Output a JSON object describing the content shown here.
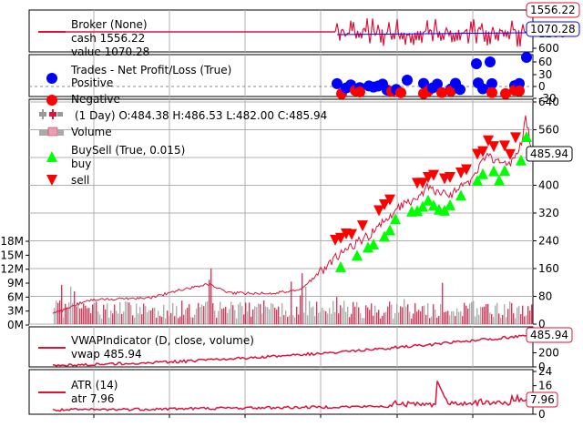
{
  "chart_data": {
    "type": "line",
    "x_range": [
      0,
      1
    ],
    "panels": {
      "broker": {
        "legend": {
          "title": "Broker (None)",
          "cash_label": "cash 1556.22",
          "value_label": "value 1070.28"
        },
        "y_ticks": [
          "1200",
          "600"
        ],
        "cash_tag": "1556.22",
        "value_tag": "1070.28",
        "colors": {
          "cash": "#dc143c",
          "value": "#0000ff"
        }
      },
      "trades": {
        "legend": {
          "title": "Trades - Net Profit/Loss (True)",
          "positive": "Positive",
          "negative": "Negative"
        },
        "y_ticks": [
          "60",
          "30",
          "0",
          "-30"
        ],
        "colors": {
          "positive": "#0000ff",
          "negative": "#ff0000"
        }
      },
      "price": {
        "legend": {
          "ohlc": "(1 Day) O:484.38 H:486.53 L:482.00 C:485.94",
          "volume": "Volume",
          "buysell": "BuySell (True, 0.015)",
          "buy": "buy",
          "sell": "sell"
        },
        "price_ticks": [
          "640",
          "560",
          "480",
          "400",
          "320",
          "240",
          "160",
          "80",
          "0"
        ],
        "volume_ticks": [
          "18M",
          "15M",
          "12M",
          "9M",
          "6M",
          "3M",
          "0M"
        ],
        "last_price_tag": "485.94",
        "colors": {
          "price": "#dc143c",
          "buy": "#00ff00",
          "sell": "#ff0000",
          "volume": "#dc143c"
        }
      },
      "vwap": {
        "legend": {
          "title": "VWAPIndicator (D, close, volume)",
          "line": "vwap 485.94"
        },
        "y_ticks": [
          "400",
          "200",
          "0"
        ],
        "tag": "485.94",
        "color": "#dc143c"
      },
      "atr": {
        "legend": {
          "title": "ATR (14)",
          "line": "atr 7.96"
        },
        "y_ticks": [
          "24",
          "16",
          "8",
          "0"
        ],
        "tag": "7.96",
        "color": "#dc143c"
      }
    }
  }
}
